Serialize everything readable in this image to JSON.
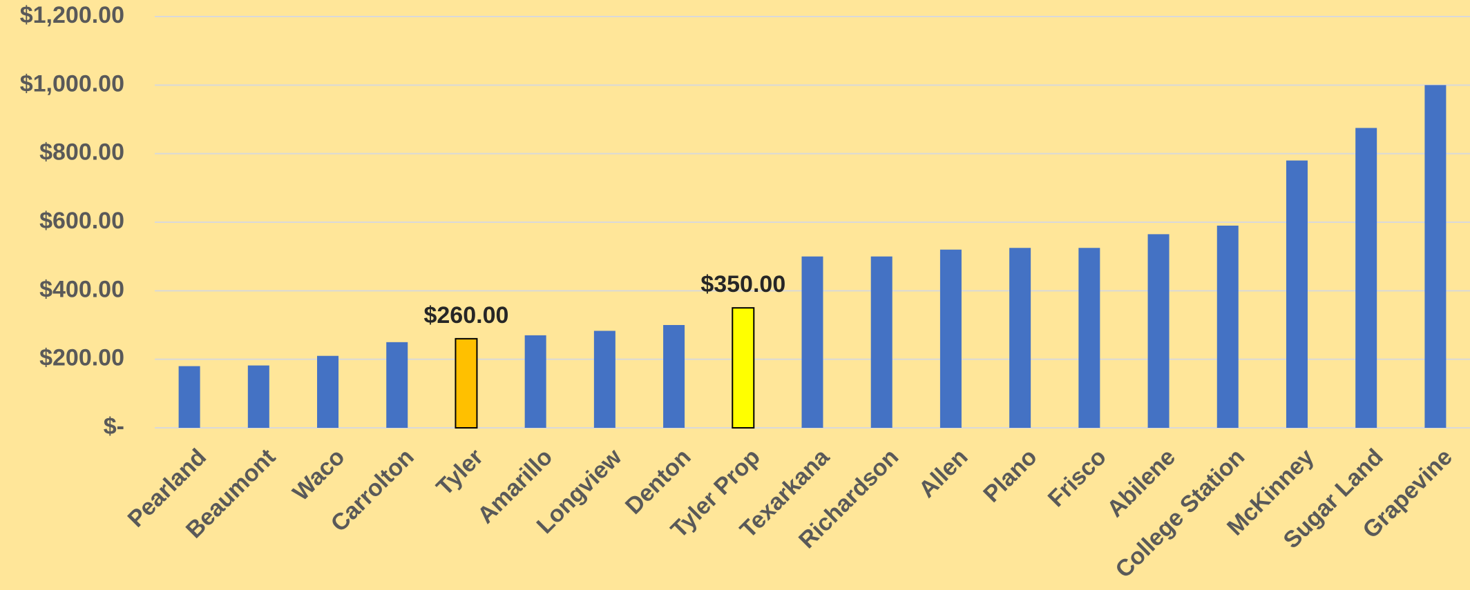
{
  "chart_data": {
    "type": "bar",
    "categories": [
      "Pearland",
      "Beaumont",
      "Waco",
      "Carrolton",
      "Tyler",
      "Amarillo",
      "Longview",
      "Denton",
      "Tyler Prop",
      "Texarkana",
      "Richardson",
      "Allen",
      "Plano",
      "Frisco",
      "Abilene",
      "College Station",
      "McKinney",
      "Sugar Land",
      "Grapevine"
    ],
    "values": [
      180,
      182,
      210,
      250,
      260,
      270,
      283,
      300,
      350,
      500,
      500,
      520,
      525,
      525,
      565,
      590,
      780,
      875,
      1000
    ],
    "value_labels": [
      null,
      null,
      null,
      null,
      "$260.00",
      null,
      null,
      null,
      "$350.00",
      null,
      null,
      null,
      null,
      null,
      null,
      null,
      null,
      null,
      null
    ],
    "colors": [
      "#4472c4",
      "#4472c4",
      "#4472c4",
      "#4472c4",
      "#ffc000",
      "#4472c4",
      "#4472c4",
      "#4472c4",
      "#ffff00",
      "#4472c4",
      "#4472c4",
      "#4472c4",
      "#4472c4",
      "#4472c4",
      "#4472c4",
      "#4472c4",
      "#4472c4",
      "#4472c4",
      "#4472c4"
    ],
    "ylim": [
      0,
      1200
    ],
    "yticks": [
      {
        "value": 0,
        "label": "$-"
      },
      {
        "value": 200,
        "label": "$200.00"
      },
      {
        "value": 400,
        "label": "$400.00"
      },
      {
        "value": 600,
        "label": "$600.00"
      },
      {
        "value": 800,
        "label": "$800.00"
      },
      {
        "value": 1000,
        "label": "$1,000.00"
      },
      {
        "value": 1200,
        "label": "$1,200.00"
      }
    ],
    "grid": true
  }
}
